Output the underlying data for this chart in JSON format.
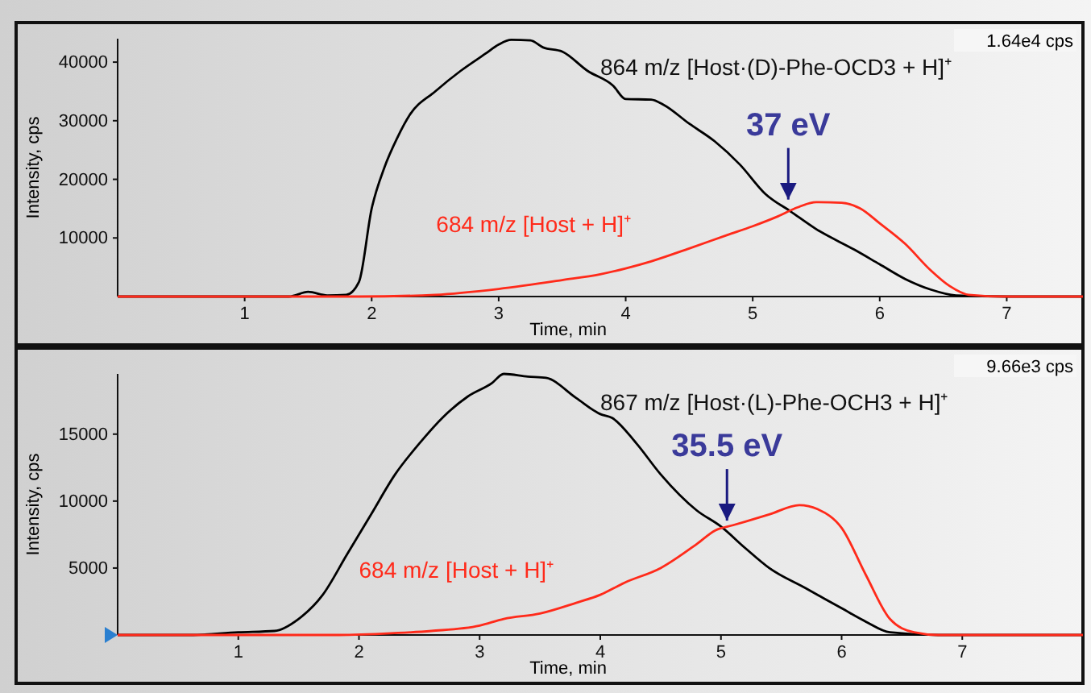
{
  "chart_data": [
    {
      "type": "line",
      "xlabel": "Time, min",
      "ylabel": "Intensity, cps",
      "xlim": [
        0,
        7.6
      ],
      "ylim": [
        0,
        44000
      ],
      "xticks": [
        1,
        2,
        3,
        4,
        5,
        6,
        7
      ],
      "yticks": [
        10000,
        20000,
        30000,
        40000
      ],
      "grid": false,
      "annotations": [
        "1.64e4 cps",
        {
          "text": "37 eV",
          "x": 5.28,
          "y": 16000
        }
      ],
      "series": [
        {
          "name": "864 m/z [Host·(D)-Phe-OCD3 + H]⁺",
          "color": "#000000",
          "x": [
            0,
            1.35,
            1.5,
            1.65,
            1.8,
            1.9,
            2.0,
            2.1,
            2.2,
            2.3,
            2.5,
            2.7,
            2.9,
            3.0,
            3.1,
            3.25,
            3.35,
            3.5,
            3.7,
            3.9,
            4.0,
            4.2,
            4.3,
            4.5,
            4.7,
            4.9,
            5.1,
            5.3,
            5.5,
            5.8,
            6.0,
            6.2,
            6.4,
            6.6,
            7.0,
            7.6
          ],
          "values": [
            0,
            0,
            800,
            200,
            300,
            2500,
            15000,
            22000,
            27000,
            31000,
            35000,
            38500,
            41500,
            43000,
            43800,
            43700,
            42500,
            41800,
            38500,
            36000,
            33700,
            33600,
            32700,
            29500,
            26500,
            22500,
            17500,
            14500,
            11500,
            8000,
            5500,
            3000,
            1200,
            200,
            0,
            0
          ]
        },
        {
          "name": "684 m/z [Host + H]⁺",
          "color": "#ff2a1a",
          "x": [
            0,
            1.9,
            2.5,
            3.0,
            3.5,
            3.8,
            4.0,
            4.2,
            4.5,
            4.8,
            5.0,
            5.2,
            5.35,
            5.5,
            5.7,
            5.85,
            6.0,
            6.2,
            6.4,
            6.55,
            6.7,
            7.0,
            7.6
          ],
          "values": [
            0,
            0,
            300,
            1300,
            2800,
            3800,
            4800,
            6000,
            8200,
            10500,
            12000,
            13700,
            15200,
            16100,
            16000,
            15000,
            12500,
            9000,
            4500,
            1800,
            300,
            0,
            0
          ]
        }
      ]
    },
    {
      "type": "line",
      "xlabel": "Time, min",
      "ylabel": "Intensity, cps",
      "xlim": [
        0,
        8.0
      ],
      "ylim": [
        0,
        19500
      ],
      "xticks": [
        1,
        2,
        3,
        4,
        5,
        6,
        7
      ],
      "yticks": [
        5000,
        10000,
        15000
      ],
      "grid": false,
      "annotations": [
        "9.66e3 cps",
        {
          "text": "35.5 eV",
          "x": 5.05,
          "y": 8300
        }
      ],
      "series": [
        {
          "name": "867 m/z [Host·(L)-Phe-OCH3 + H]⁺",
          "color": "#000000",
          "x": [
            0,
            0.6,
            1.0,
            1.3,
            1.5,
            1.7,
            1.9,
            2.1,
            2.3,
            2.5,
            2.7,
            2.9,
            3.1,
            3.2,
            3.4,
            3.55,
            3.8,
            4.0,
            4.1,
            4.3,
            4.5,
            4.8,
            5.0,
            5.2,
            5.4,
            5.7,
            6.0,
            6.2,
            6.4,
            6.8,
            8.0
          ],
          "values": [
            0,
            0,
            200,
            300,
            1200,
            3000,
            6000,
            9000,
            12000,
            14300,
            16300,
            17800,
            18800,
            19500,
            19300,
            19200,
            17700,
            16500,
            16200,
            14300,
            12000,
            9300,
            8100,
            6500,
            5000,
            3500,
            2000,
            1000,
            200,
            0,
            0
          ]
        },
        {
          "name": "684 m/z [Host + H]⁺",
          "color": "#ff2a1a",
          "x": [
            0,
            1.8,
            2.2,
            2.6,
            3.0,
            3.2,
            3.5,
            3.8,
            4.0,
            4.2,
            4.5,
            4.8,
            4.95,
            5.1,
            5.4,
            5.65,
            5.8,
            6.0,
            6.2,
            6.4,
            6.6,
            6.8,
            8.0
          ],
          "values": [
            0,
            0,
            100,
            300,
            700,
            1200,
            1600,
            2400,
            3000,
            3900,
            5000,
            6800,
            7800,
            8200,
            9000,
            9700,
            9400,
            8000,
            4500,
            1200,
            200,
            0,
            0
          ]
        }
      ]
    }
  ]
}
